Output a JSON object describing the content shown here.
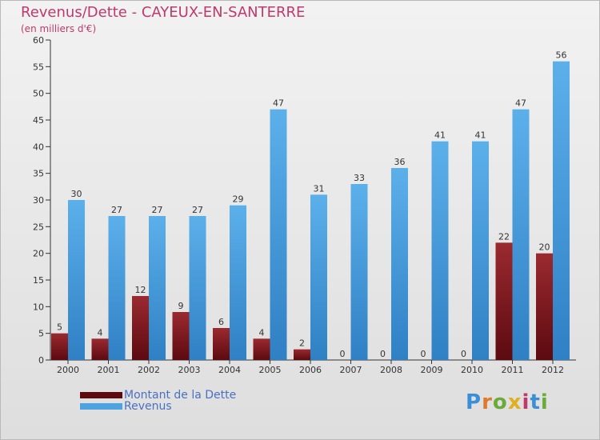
{
  "colors": {
    "dette": "#8b1c24",
    "revenus": "#4da3e0",
    "title": "#c0396a",
    "legend_text": "#4a70c2"
  },
  "logo": {
    "text": "Proxiti"
  },
  "chart_data": {
    "type": "bar",
    "title": "Revenus/Dette - CAYEUX-EN-SANTERRE",
    "subtitle": "(en milliers d'€)",
    "xlabel": "",
    "ylabel": "",
    "ylim": [
      0,
      60
    ],
    "ytick_step": 5,
    "categories": [
      "2000",
      "2001",
      "2002",
      "2003",
      "2004",
      "2005",
      "2006",
      "2007",
      "2008",
      "2009",
      "2010",
      "2011",
      "2012"
    ],
    "series": [
      {
        "name": "Montant de la Dette",
        "color": "#8b1c24",
        "values": [
          5,
          4,
          12,
          9,
          6,
          4,
          2,
          0,
          0,
          0,
          0,
          22,
          20
        ]
      },
      {
        "name": "Revenus",
        "color": "#4da3e0",
        "values": [
          30,
          27,
          27,
          27,
          29,
          47,
          31,
          33,
          36,
          41,
          41,
          47,
          56
        ]
      }
    ],
    "legend": "bottom-left"
  }
}
